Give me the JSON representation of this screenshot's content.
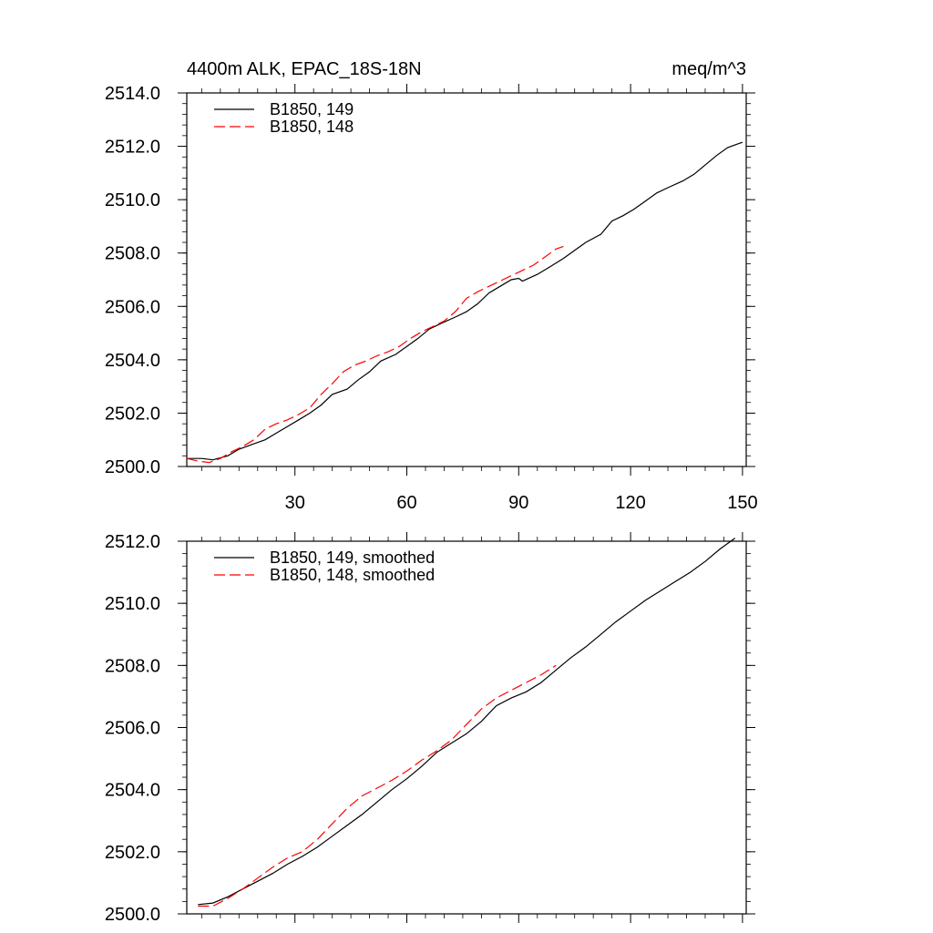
{
  "chart_data": [
    {
      "type": "line",
      "title_left": "4400m ALK, EPAC_18S-18N",
      "title_right": "meq/m^3",
      "xlabel": "",
      "ylabel": "",
      "xlim": [
        1,
        151
      ],
      "ylim": [
        2500,
        2514
      ],
      "x_ticks": [
        30,
        60,
        90,
        120,
        150
      ],
      "x_tick_labels": [
        "30",
        "60",
        "90",
        "120",
        "150"
      ],
      "y_ticks": [
        2500,
        2502,
        2504,
        2506,
        2508,
        2510,
        2512,
        2514
      ],
      "y_tick_labels": [
        "2500.0",
        "2502.0",
        "2504.0",
        "2506.0",
        "2508.0",
        "2510.0",
        "2512.0",
        "2514.0"
      ],
      "grid": false,
      "legend_position": "top-left",
      "series": [
        {
          "name": "B1850, 149",
          "color": "#000000",
          "dash": "solid",
          "x": [
            1,
            5,
            8,
            12,
            15,
            19,
            22,
            25,
            28,
            31,
            34,
            37,
            40,
            44,
            47,
            50,
            53,
            57,
            60,
            63,
            66,
            69,
            73,
            76,
            79,
            82,
            85,
            88,
            90,
            91,
            95,
            98,
            102,
            105,
            108,
            112,
            115,
            118,
            121,
            124,
            127,
            130,
            134,
            137,
            140,
            143,
            146,
            149,
            150
          ],
          "y": [
            2500.3,
            2500.3,
            2500.25,
            2500.4,
            2500.65,
            2500.85,
            2501.0,
            2501.25,
            2501.5,
            2501.75,
            2502.0,
            2502.3,
            2502.7,
            2502.9,
            2503.25,
            2503.55,
            2503.95,
            2504.2,
            2504.5,
            2504.8,
            2505.15,
            2505.35,
            2505.6,
            2505.8,
            2506.1,
            2506.5,
            2506.75,
            2507.0,
            2507.05,
            2506.95,
            2507.2,
            2507.45,
            2507.8,
            2508.1,
            2508.4,
            2508.7,
            2509.2,
            2509.4,
            2509.65,
            2509.95,
            2510.25,
            2510.45,
            2510.7,
            2510.95,
            2511.3,
            2511.65,
            2511.95,
            2512.1,
            2512.15
          ]
        },
        {
          "name": "B1850, 148",
          "color": "#ff0000",
          "dash": "dashed",
          "x": [
            1,
            4,
            7,
            10,
            13,
            16,
            19,
            22,
            25,
            28,
            31,
            34,
            37,
            40,
            43,
            46,
            49,
            52,
            55,
            58,
            61,
            64,
            67,
            70,
            73,
            76,
            79,
            82,
            85,
            88,
            91,
            94,
            97,
            100,
            102
          ],
          "y": [
            2500.3,
            2500.2,
            2500.15,
            2500.3,
            2500.55,
            2500.75,
            2501.0,
            2501.4,
            2501.6,
            2501.75,
            2501.95,
            2502.2,
            2502.7,
            2503.1,
            2503.55,
            2503.8,
            2503.95,
            2504.15,
            2504.3,
            2504.5,
            2504.8,
            2505.05,
            2505.25,
            2505.45,
            2505.8,
            2506.3,
            2506.55,
            2506.75,
            2506.95,
            2507.15,
            2507.35,
            2507.55,
            2507.85,
            2508.15,
            2508.25
          ]
        }
      ]
    },
    {
      "type": "line",
      "title_left": "",
      "title_right": "",
      "xlabel": "",
      "ylabel": "",
      "xlim": [
        1,
        151
      ],
      "ylim": [
        2500,
        2512
      ],
      "x_ticks": [
        30,
        60,
        90,
        120,
        150
      ],
      "x_tick_labels": [],
      "y_ticks": [
        2500,
        2502,
        2504,
        2506,
        2508,
        2510,
        2512
      ],
      "y_tick_labels": [
        "2500.0",
        "2502.0",
        "2504.0",
        "2506.0",
        "2508.0",
        "2510.0",
        "2512.0"
      ],
      "grid": false,
      "legend_position": "top-left",
      "series": [
        {
          "name": "B1850, 149, smoothed",
          "color": "#000000",
          "dash": "solid",
          "x": [
            4,
            8,
            12,
            16,
            20,
            24,
            28,
            32,
            36,
            40,
            44,
            48,
            52,
            56,
            60,
            64,
            68,
            72,
            76,
            80,
            84,
            88,
            92,
            96,
            100,
            104,
            108,
            112,
            116,
            120,
            124,
            128,
            132,
            136,
            140,
            144,
            148
          ],
          "y": [
            2500.3,
            2500.35,
            2500.55,
            2500.8,
            2501.05,
            2501.3,
            2501.6,
            2501.85,
            2502.15,
            2502.5,
            2502.85,
            2503.2,
            2503.6,
            2504.0,
            2504.35,
            2504.75,
            2505.2,
            2505.5,
            2505.8,
            2506.2,
            2506.7,
            2506.95,
            2507.15,
            2507.45,
            2507.85,
            2508.25,
            2508.6,
            2509.0,
            2509.4,
            2509.75,
            2510.1,
            2510.4,
            2510.7,
            2511.0,
            2511.35,
            2511.75,
            2512.1
          ]
        },
        {
          "name": "B1850, 148, smoothed",
          "color": "#ff0000",
          "dash": "dashed",
          "x": [
            4,
            8,
            12,
            16,
            20,
            24,
            28,
            32,
            36,
            40,
            44,
            48,
            52,
            56,
            60,
            64,
            68,
            72,
            76,
            80,
            84,
            88,
            92,
            96,
            100
          ],
          "y": [
            2500.25,
            2500.25,
            2500.5,
            2500.8,
            2501.15,
            2501.5,
            2501.8,
            2502.0,
            2502.4,
            2502.9,
            2503.4,
            2503.8,
            2504.05,
            2504.3,
            2504.6,
            2504.95,
            2505.25,
            2505.6,
            2506.1,
            2506.6,
            2506.95,
            2507.2,
            2507.45,
            2507.7,
            2508.0
          ]
        }
      ]
    }
  ]
}
